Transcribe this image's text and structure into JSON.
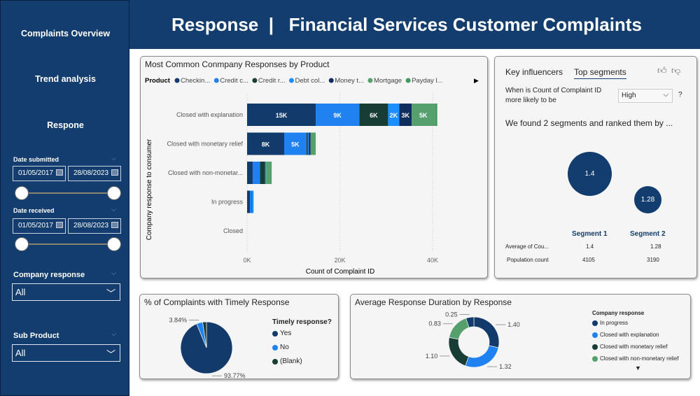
{
  "sidebar": {
    "nav": [
      "Complaints Overview",
      "Trend analysis",
      "Respone"
    ],
    "date_submitted": {
      "label": "Date submitted",
      "from": "01/05/2017",
      "to": "28/08/2023"
    },
    "date_received": {
      "label": "Date received",
      "from": "01/05/2017",
      "to": "28/08/2023"
    },
    "company_response": {
      "label": "Company response",
      "value": "All"
    },
    "sub_product": {
      "label": "Sub Product",
      "value": "All"
    }
  },
  "header": {
    "title": "Response  |   Financial Services Customer Complaints"
  },
  "colors": {
    "navy": "#123d6e",
    "accent": "#1f82f0"
  },
  "chart_data": [
    {
      "type": "bar",
      "orientation": "horizontal-stacked",
      "title": "Most Common Conmpany Responses by Product",
      "legend_title": "Product",
      "xlabel": "Count of Complaint ID",
      "ylabel": "Company response to consumer",
      "xlim": [
        0,
        45000
      ],
      "xticks": [
        "0K",
        "20K",
        "40K"
      ],
      "grid": true,
      "legend_placement": "top",
      "categories": [
        "Closed with explanation",
        "Closed with monetary relief",
        "Closed with non-monetar...",
        "In progress",
        "Closed"
      ],
      "series": [
        {
          "name": "Checkin...",
          "color": "#123a6b",
          "values": [
            14800,
            8000,
            1200,
            600,
            0
          ],
          "labels": [
            "15K",
            "8K",
            "",
            "",
            ""
          ]
        },
        {
          "name": "Credit c...",
          "color": "#1f82f0",
          "values": [
            9400,
            4800,
            1600,
            300,
            0
          ],
          "labels": [
            "9K",
            "5K",
            "",
            "",
            ""
          ]
        },
        {
          "name": "Credit r...",
          "color": "#173d35",
          "values": [
            6200,
            300,
            1100,
            100,
            0
          ],
          "labels": [
            "6K",
            "",
            "",
            "",
            ""
          ]
        },
        {
          "name": "Debt col...",
          "color": "#1b8fff",
          "values": [
            2400,
            200,
            200,
            400,
            0
          ],
          "labels": [
            "2K",
            "",
            "",
            "",
            ""
          ]
        },
        {
          "name": "Money t...",
          "color": "#0f2e5e",
          "values": [
            2700,
            400,
            0,
            0,
            0
          ],
          "labels": [
            "3K",
            "",
            "",
            "",
            ""
          ]
        },
        {
          "name": "Mortgage",
          "color": "#56a06e",
          "values": [
            5000,
            1000,
            1100,
            0,
            0
          ],
          "labels": [
            "5K",
            "",
            "",
            "",
            ""
          ]
        },
        {
          "name": "Payday l...",
          "color": "#3e9a5d",
          "values": [
            500,
            100,
            100,
            0,
            0
          ],
          "labels": [
            "",
            "",
            "",
            "",
            ""
          ]
        }
      ]
    },
    {
      "type": "pie",
      "title": "% of Complaints with Timely Response",
      "legend_title": "Timely response?",
      "slices": [
        {
          "name": "Yes",
          "value": 93.77,
          "label": "93.77%",
          "color": "#123a6b"
        },
        {
          "name": "No",
          "value": 3.84,
          "label": "3.84%",
          "color": "#1f82f0"
        },
        {
          "name": "(Blank)",
          "value": 2.39,
          "label": "",
          "color": "#173d35"
        }
      ]
    },
    {
      "type": "pie",
      "variant": "donut",
      "title": "Average Response Duration by Response",
      "legend_title": "Company response",
      "slices": [
        {
          "name": "In progress",
          "value": 1.4,
          "label": "1.40",
          "color": "#123a6b"
        },
        {
          "name": "Closed with explanation",
          "value": 1.32,
          "label": "1.32",
          "color": "#1f82f0"
        },
        {
          "name": "Closed with monetary relief",
          "value": 1.1,
          "label": "1.10",
          "color": "#173d35"
        },
        {
          "name": "Closed with non-monetary relief",
          "value": 0.83,
          "label": "0.83",
          "color": "#56a06e"
        },
        {
          "name": "",
          "value": 0.25,
          "label": "0.25",
          "color": "#123a6b"
        }
      ]
    }
  ],
  "influencers": {
    "tabs": [
      "Key influencers",
      "Top segments"
    ],
    "question": "When is Count of Complaint ID more likely to be",
    "select": "High",
    "help": "?",
    "summary": "We found 2 segments and ranked them by ...",
    "segments": [
      {
        "name": "Segment 1",
        "value": "1.4",
        "avg": "1.4",
        "population": "4105"
      },
      {
        "name": "Segment 2",
        "value": "1.28",
        "avg": "1.28",
        "population": "3190"
      }
    ],
    "row_labels": [
      "Average of Cou...",
      "Population count"
    ]
  }
}
